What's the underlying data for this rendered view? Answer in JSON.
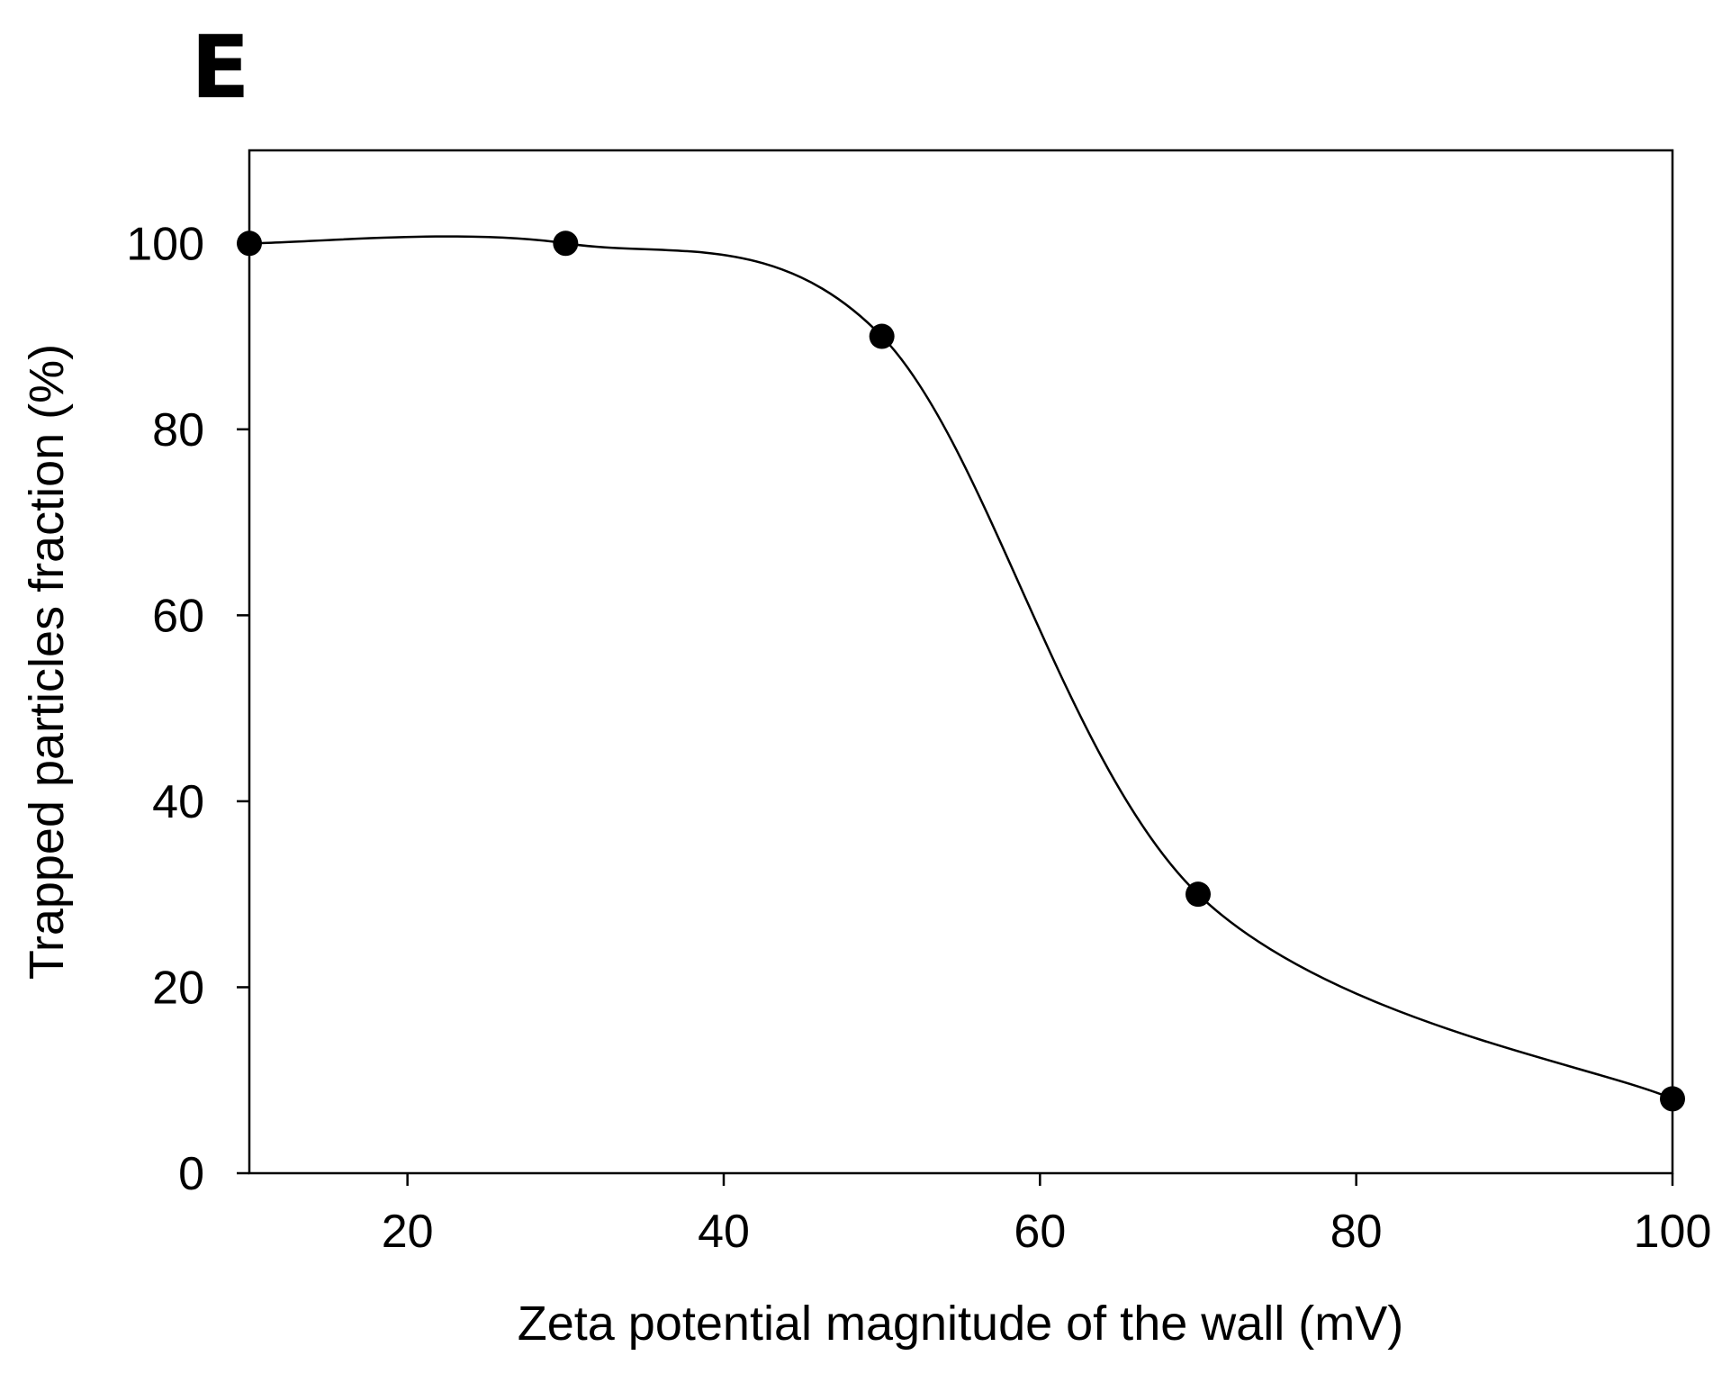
{
  "panel_label": "E",
  "chart_data": {
    "type": "scatter",
    "title": "",
    "xlabel": "Zeta potential magnitude of the wall (mV)",
    "ylabel": "Trapped particles fraction (%)",
    "xlim": [
      10,
      100
    ],
    "ylim": [
      0,
      110
    ],
    "x_ticks": [
      20,
      40,
      60,
      80,
      100
    ],
    "y_ticks": [
      0,
      20,
      40,
      60,
      80,
      100
    ],
    "x_tick_labels": [
      "20",
      "40",
      "60",
      "80",
      "100"
    ],
    "y_tick_labels": [
      "0",
      "20",
      "40",
      "60",
      "80",
      "100"
    ],
    "grid": false,
    "legend": "none",
    "series": [
      {
        "name": "Trapped particles fraction",
        "x": [
          10,
          30,
          50,
          70,
          100
        ],
        "y": [
          100,
          100,
          90,
          30,
          8
        ],
        "marker": "circle",
        "color": "#000000",
        "fit_curve": "smooth spline"
      }
    ]
  }
}
